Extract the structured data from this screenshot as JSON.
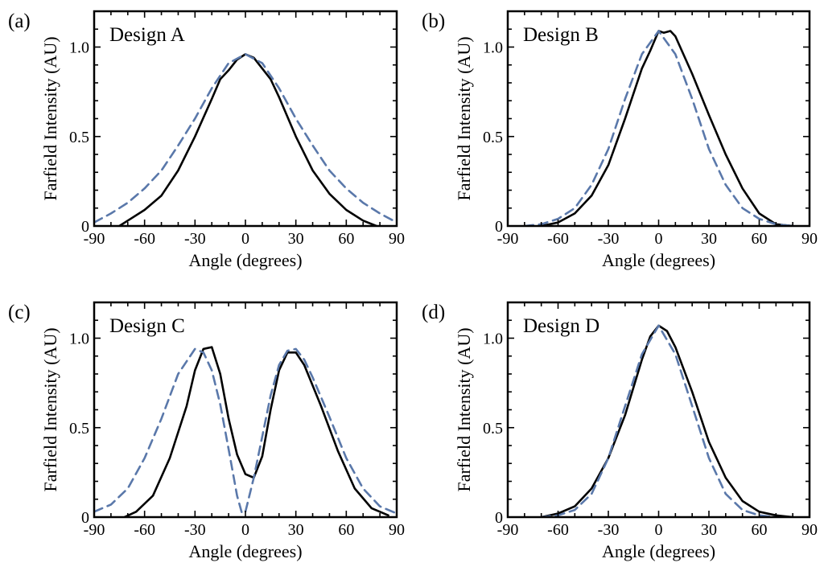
{
  "chart_data": [
    {
      "panel": "(a)",
      "type": "line",
      "title": "Design A",
      "xlabel": "Angle (degrees)",
      "ylabel": "Farfield Intensity (AU)",
      "xlim": [
        -90,
        90
      ],
      "ylim": [
        0,
        1.2
      ],
      "xticks": [
        -90,
        -60,
        -30,
        0,
        30,
        60,
        90
      ],
      "yticks": [
        0,
        0.5,
        1.0
      ],
      "ytick_labels": [
        "0",
        "0.5",
        "1.0"
      ],
      "series": [
        {
          "style": "solid",
          "color": "#000000",
          "x": [
            -75,
            -70,
            -60,
            -50,
            -40,
            -30,
            -20,
            -15,
            -10,
            -5,
            0,
            5,
            10,
            15,
            20,
            30,
            40,
            50,
            60,
            70,
            78
          ],
          "y": [
            0.0,
            0.03,
            0.09,
            0.17,
            0.31,
            0.5,
            0.71,
            0.82,
            0.87,
            0.93,
            0.96,
            0.94,
            0.88,
            0.82,
            0.72,
            0.5,
            0.31,
            0.18,
            0.09,
            0.03,
            0.0
          ]
        },
        {
          "style": "dashed",
          "color": "#5a78aa",
          "x": [
            -90,
            -80,
            -70,
            -60,
            -50,
            -40,
            -30,
            -20,
            -10,
            0,
            10,
            20,
            30,
            40,
            50,
            60,
            70,
            80,
            90
          ],
          "y": [
            0.02,
            0.07,
            0.13,
            0.21,
            0.31,
            0.45,
            0.6,
            0.77,
            0.91,
            0.96,
            0.91,
            0.77,
            0.6,
            0.45,
            0.31,
            0.21,
            0.13,
            0.07,
            0.02
          ]
        }
      ]
    },
    {
      "panel": "(b)",
      "type": "line",
      "title": "Design B",
      "xlabel": "Angle (degrees)",
      "ylabel": "Farfield Intensity (AU)",
      "xlim": [
        -90,
        90
      ],
      "ylim": [
        0,
        1.2
      ],
      "xticks": [
        -90,
        -60,
        -30,
        0,
        30,
        60,
        90
      ],
      "yticks": [
        0,
        0.5,
        1.0
      ],
      "ytick_labels": [
        "0",
        "0.5",
        "1.0"
      ],
      "series": [
        {
          "style": "solid",
          "color": "#000000",
          "x": [
            -70,
            -60,
            -50,
            -40,
            -30,
            -20,
            -10,
            -5,
            0,
            3,
            7,
            10,
            20,
            30,
            40,
            50,
            60,
            70,
            80
          ],
          "y": [
            0.0,
            0.02,
            0.07,
            0.17,
            0.34,
            0.6,
            0.88,
            0.98,
            1.09,
            1.08,
            1.09,
            1.06,
            0.85,
            0.62,
            0.4,
            0.21,
            0.07,
            0.01,
            0.0
          ]
        },
        {
          "style": "dashed",
          "color": "#5a78aa",
          "x": [
            -80,
            -70,
            -60,
            -50,
            -40,
            -30,
            -20,
            -10,
            0,
            10,
            20,
            30,
            40,
            50,
            60,
            70,
            80
          ],
          "y": [
            0.0,
            0.01,
            0.04,
            0.1,
            0.23,
            0.43,
            0.71,
            0.96,
            1.09,
            0.96,
            0.71,
            0.43,
            0.23,
            0.1,
            0.04,
            0.01,
            0.0
          ]
        }
      ]
    },
    {
      "panel": "(c)",
      "type": "line",
      "title": "Design C",
      "xlabel": "Angle (degrees)",
      "ylabel": "Farfield Intensity (AU)",
      "xlim": [
        -90,
        90
      ],
      "ylim": [
        0,
        1.2
      ],
      "xticks": [
        -90,
        -60,
        -30,
        0,
        30,
        60,
        90
      ],
      "yticks": [
        0,
        0.5,
        1.0
      ],
      "ytick_labels": [
        "0",
        "0.5",
        "1.0"
      ],
      "series": [
        {
          "style": "solid",
          "color": "#000000",
          "x": [
            -72,
            -65,
            -55,
            -45,
            -35,
            -30,
            -25,
            -20,
            -15,
            -10,
            -5,
            0,
            5,
            10,
            15,
            20,
            25,
            30,
            35,
            45,
            55,
            65,
            75,
            85
          ],
          "y": [
            0.0,
            0.03,
            0.12,
            0.33,
            0.62,
            0.82,
            0.94,
            0.95,
            0.8,
            0.55,
            0.35,
            0.24,
            0.22,
            0.34,
            0.6,
            0.82,
            0.92,
            0.92,
            0.85,
            0.62,
            0.37,
            0.16,
            0.05,
            0.01
          ]
        },
        {
          "style": "dashed",
          "color": "#5a78aa",
          "x": [
            -90,
            -80,
            -70,
            -60,
            -50,
            -40,
            -30,
            -25,
            -20,
            -15,
            -10,
            -5,
            -2,
            0,
            5,
            10,
            15,
            20,
            25,
            30,
            35,
            40,
            50,
            60,
            70,
            80,
            90
          ],
          "y": [
            0.03,
            0.07,
            0.16,
            0.33,
            0.55,
            0.8,
            0.94,
            0.92,
            0.82,
            0.63,
            0.38,
            0.12,
            0.02,
            0.03,
            0.22,
            0.45,
            0.68,
            0.85,
            0.93,
            0.94,
            0.88,
            0.78,
            0.56,
            0.33,
            0.16,
            0.06,
            0.02
          ]
        }
      ]
    },
    {
      "panel": "(d)",
      "type": "line",
      "title": "Design D",
      "xlabel": "Angle (degrees)",
      "ylabel": "Farfield Intensity (AU)",
      "xlim": [
        -90,
        90
      ],
      "ylim": [
        0,
        1.2
      ],
      "xticks": [
        -90,
        -60,
        -30,
        0,
        30,
        60,
        90
      ],
      "yticks": [
        0,
        0.5,
        1.0
      ],
      "ytick_labels": [
        "0",
        "0.5",
        "1.0"
      ],
      "series": [
        {
          "style": "solid",
          "color": "#000000",
          "x": [
            -70,
            -60,
            -50,
            -40,
            -30,
            -20,
            -10,
            -5,
            0,
            5,
            10,
            20,
            30,
            40,
            50,
            60,
            70,
            80
          ],
          "y": [
            0.0,
            0.02,
            0.06,
            0.16,
            0.33,
            0.57,
            0.88,
            1.01,
            1.07,
            1.04,
            0.95,
            0.7,
            0.42,
            0.22,
            0.09,
            0.03,
            0.01,
            0.0
          ]
        },
        {
          "style": "dashed",
          "color": "#5a78aa",
          "x": [
            -70,
            -60,
            -50,
            -40,
            -30,
            -20,
            -10,
            0,
            10,
            20,
            30,
            40,
            50,
            60,
            70
          ],
          "y": [
            0.0,
            0.01,
            0.04,
            0.13,
            0.33,
            0.62,
            0.91,
            1.07,
            0.91,
            0.62,
            0.33,
            0.13,
            0.04,
            0.01,
            0.0
          ]
        }
      ]
    }
  ]
}
